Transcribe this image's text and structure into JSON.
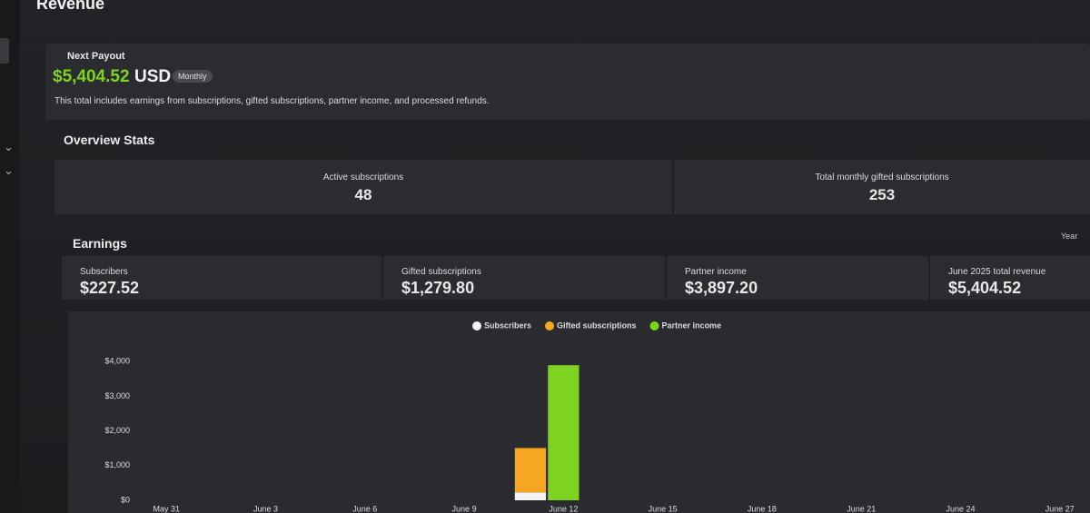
{
  "header": {
    "title": "Revenue"
  },
  "payout": {
    "label": "Next Payout",
    "amount": "$5,404.52",
    "currency": "USD",
    "badge": "Monthly",
    "note": "This total includes earnings from subscriptions, gifted subscriptions, partner income, and processed refunds."
  },
  "overview": {
    "title": "Overview Stats",
    "stats": [
      {
        "label": "Active subscriptions",
        "value": 48
      },
      {
        "label": "Total monthly gifted subscriptions",
        "value": 253
      }
    ]
  },
  "earnings": {
    "title": "Earnings",
    "period_label": "Year",
    "cards": [
      {
        "label": "Subscribers",
        "value": "$227.52"
      },
      {
        "label": "Gifted subscriptions",
        "value": "$1,279.80"
      },
      {
        "label": "Partner income",
        "value": "$3,897.20"
      },
      {
        "label": "June 2025 total revenue",
        "value": "$5,404.52"
      }
    ]
  },
  "chart_data": {
    "type": "bar",
    "stacked": true,
    "categories": [
      "May 31",
      null,
      null,
      "June 3",
      null,
      null,
      "June 6",
      null,
      null,
      "June 9",
      null,
      null,
      "June 12",
      null,
      null,
      "June 15",
      null,
      null,
      "June 18",
      null,
      null,
      "June 21",
      null,
      null,
      "June 24",
      null,
      null,
      "June 27"
    ],
    "series": [
      {
        "name": "Subscribers",
        "color": "#f2f2f2",
        "values": [
          0,
          0,
          0,
          0,
          0,
          0,
          0,
          0,
          0,
          0,
          0,
          227.52,
          0,
          0,
          0,
          0,
          0,
          0,
          0,
          0,
          0,
          0,
          0,
          0,
          0,
          0,
          0,
          0
        ]
      },
      {
        "name": "Gifted subscriptions",
        "color": "#f5a623",
        "values": [
          0,
          0,
          0,
          0,
          0,
          0,
          0,
          0,
          0,
          0,
          0,
          1279.8,
          0,
          0,
          0,
          0,
          0,
          0,
          0,
          0,
          0,
          0,
          0,
          0,
          0,
          0,
          0,
          0
        ]
      },
      {
        "name": "Partner income",
        "color": "#7ed321",
        "values": [
          0,
          0,
          0,
          0,
          0,
          0,
          0,
          0,
          0,
          0,
          0,
          0,
          3897.2,
          0,
          0,
          0,
          0,
          0,
          0,
          0,
          0,
          0,
          0,
          0,
          0,
          0,
          0,
          0
        ]
      }
    ],
    "ylim": [
      0,
      4400
    ],
    "yticks": [
      {
        "value": 0,
        "label": "$0"
      },
      {
        "value": 1000,
        "label": "$1,000"
      },
      {
        "value": 2000,
        "label": "$2,000"
      },
      {
        "value": 3000,
        "label": "$3,000"
      },
      {
        "value": 4000,
        "label": "$4,000"
      }
    ],
    "grid": false,
    "legend": "top"
  }
}
